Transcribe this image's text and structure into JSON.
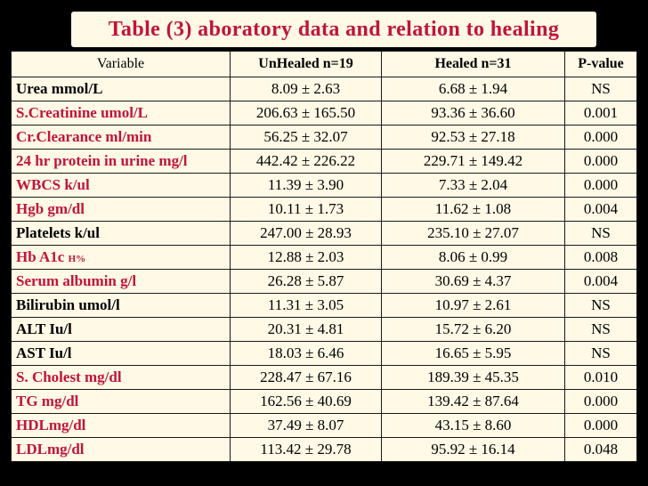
{
  "title": "Table (3) aboratory data and relation to healing",
  "table": {
    "headers": [
      "Variable",
      "UnHealed n=19",
      "Healed n=31",
      "P-value"
    ],
    "rows": [
      {
        "variable": "Urea mmol/L",
        "unhealed": "8.09 ± 2.63",
        "healed": "6.68 ± 1.94",
        "p": "NS",
        "red": false
      },
      {
        "variable": "S.Creatinine umol/L",
        "unhealed": "206.63 ± 165.50",
        "healed": "93.36 ± 36.60",
        "p": "0.001",
        "red": true
      },
      {
        "variable": "Cr.Clearance ml/min",
        "unhealed": "56.25 ± 32.07",
        "healed": "92.53 ± 27.18",
        "p": "0.000",
        "red": true
      },
      {
        "variable": "24 hr protein in urine mg/l",
        "unhealed": "442.42 ± 226.22",
        "healed": "229.71 ± 149.42",
        "p": "0.000",
        "red": true
      },
      {
        "variable": "WBCS k/ul",
        "unhealed": "11.39 ± 3.90",
        "healed": "7.33 ± 2.04",
        "p": "0.000",
        "red": true
      },
      {
        "variable": "Hgb gm/dl",
        "unhealed": "10.11 ± 1.73",
        "healed": "11.62 ± 1.08",
        "p": "0.004",
        "red": true
      },
      {
        "variable": "Platelets k/ul",
        "unhealed": "247.00 ± 28.93",
        "healed": "235.10 ± 27.07",
        "p": "NS",
        "red": false
      },
      {
        "variable": "Hb A1c",
        "suffix": "H%",
        "unhealed": "12.88 ± 2.03",
        "healed": "8.06 ± 0.99",
        "p": "0.008",
        "red": true
      },
      {
        "variable": "Serum albumin g/l",
        "unhealed": "26.28 ± 5.87",
        "healed": "30.69 ± 4.37",
        "p": "0.004",
        "red": true
      },
      {
        "variable": "Bilirubin umol/l",
        "unhealed": "11.31 ± 3.05",
        "healed": "10.97 ± 2.61",
        "p": "NS",
        "red": false
      },
      {
        "variable": "ALT Iu/l",
        "unhealed": "20.31 ± 4.81",
        "healed": "15.72 ± 6.20",
        "p": "NS",
        "red": false
      },
      {
        "variable": "AST Iu/l",
        "unhealed": "18.03 ± 6.46",
        "healed": "16.65 ± 5.95",
        "p": "NS",
        "red": false
      },
      {
        "variable": "S. Cholest mg/dl",
        "unhealed": "228.47 ± 67.16",
        "healed": "189.39 ± 45.35",
        "p": "0.010",
        "red": true
      },
      {
        "variable": "TG mg/dl",
        "unhealed": "162.56 ± 40.69",
        "healed": "139.42 ± 87.64",
        "p": "0.000",
        "red": true
      },
      {
        "variable": "HDLmg/dl",
        "unhealed": "37.49 ± 8.07",
        "healed": "43.15 ± 8.60",
        "p": "0.000",
        "red": true
      },
      {
        "variable": "LDLmg/dl",
        "unhealed": "113.42 ± 29.78",
        "healed": "95.92 ± 16.14",
        "p": "0.048",
        "red": true
      }
    ]
  },
  "colors": {
    "background": "#000000",
    "panel": "#fff9e6",
    "highlight": "#c0143c",
    "text": "#000000"
  }
}
